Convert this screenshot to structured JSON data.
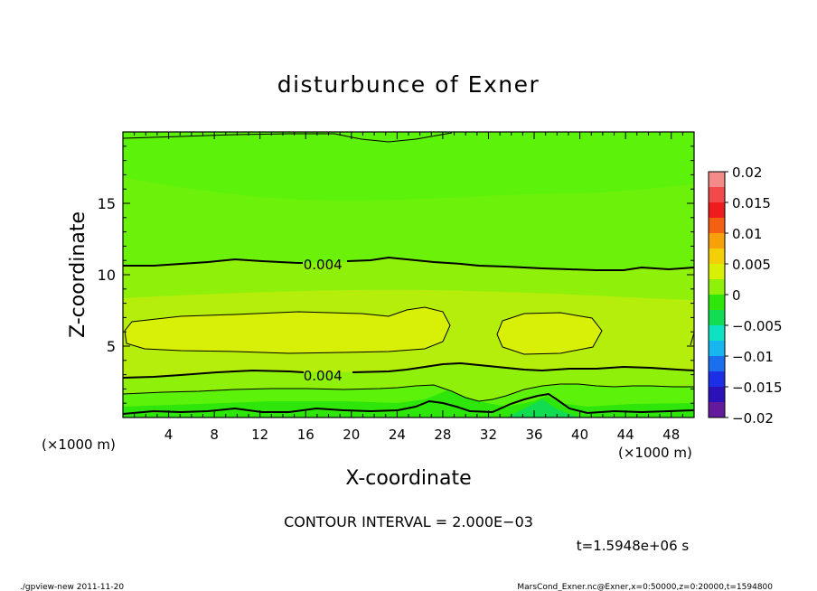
{
  "chart_data": {
    "type": "heatmap",
    "title": "disturbunce of Exner",
    "xlabel": "X-coordinate",
    "ylabel": "Z-coordinate",
    "x_unit_left": "(×1000 m)",
    "x_unit_right": "(×1000 m)",
    "xlim": [
      0,
      50
    ],
    "ylim": [
      0,
      20
    ],
    "x_ticks": [
      4,
      8,
      12,
      16,
      20,
      24,
      28,
      32,
      36,
      40,
      44,
      48
    ],
    "x_tick_labels": [
      "4",
      "8",
      "12",
      "16",
      "20",
      "24",
      "28",
      "32",
      "36",
      "40",
      "44",
      "48"
    ],
    "y_ticks": [
      5,
      10,
      15
    ],
    "y_tick_labels": [
      "5",
      "10",
      "15"
    ],
    "contour_labels": [
      {
        "text": "0.004",
        "x": 17.5,
        "y": 10.7
      },
      {
        "text": "0.004",
        "x": 17.5,
        "y": 2.9
      }
    ],
    "colorbar": {
      "min": -0.02,
      "max": 0.02,
      "step": 0.0025,
      "tick_values": [
        0.02,
        0.015,
        0.01,
        0.005,
        0,
        -0.005,
        -0.01,
        -0.015,
        -0.02
      ],
      "tick_labels": [
        "0.02",
        "0.015",
        "0.01",
        "0.005",
        "0",
        "−0.005",
        "−0.01",
        "−0.015",
        "−0.02"
      ],
      "colors": [
        "#f58a8a",
        "#f24a4a",
        "#ee1d1d",
        "#f36012",
        "#f7a00a",
        "#f2cf06",
        "#d8ef06",
        "#8ff00a",
        "#2ee60a",
        "#12dc52",
        "#0fe2c2",
        "#16b7ef",
        "#1a6fef",
        "#1a2fe6",
        "#2a12b8",
        "#641a9c"
      ]
    },
    "contour_interval_text": "CONTOUR INTERVAL = 2.000E−03",
    "time_text": "t=1.5948e+06 s"
  },
  "footer": {
    "left": "./gpview-new   2011-11-20",
    "right": "MarsCond_Exner.nc@Exner,x=0:50000,z=0:20000,t=1594800"
  }
}
